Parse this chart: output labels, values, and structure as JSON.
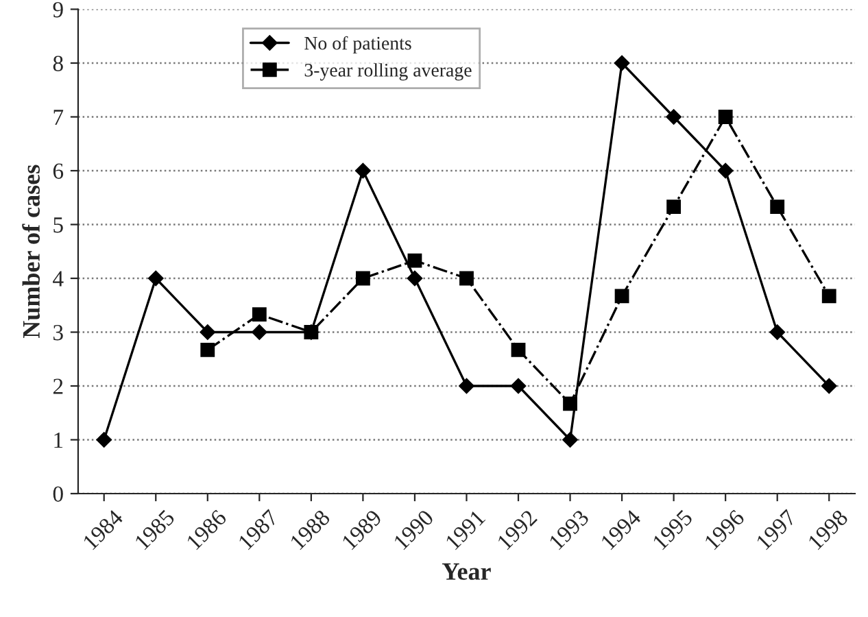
{
  "chart_data": {
    "type": "line",
    "xlabel": "Year",
    "ylabel": "Number of cases",
    "categories": [
      "1984",
      "1985",
      "1986",
      "1987",
      "1988",
      "1989",
      "1990",
      "1991",
      "1992",
      "1993",
      "1994",
      "1995",
      "1996",
      "1997",
      "1998"
    ],
    "series": [
      {
        "name": "No of patients",
        "color": "#000000",
        "marker": "diamond",
        "line_style": "solid",
        "values": [
          1,
          4,
          3,
          3,
          3,
          6,
          4,
          2,
          2,
          1,
          8,
          7,
          6,
          3,
          2
        ]
      },
      {
        "name": "3-year rolling average",
        "color": "#000000",
        "marker": "square",
        "line_style": "dashdot",
        "values": [
          null,
          null,
          2.67,
          3.33,
          3,
          4,
          4.33,
          4,
          2.67,
          1.67,
          3.67,
          5.33,
          7,
          5.33,
          3.67
        ]
      }
    ],
    "ylim": [
      0,
      9
    ],
    "yticks": [
      0,
      1,
      2,
      3,
      4,
      5,
      6,
      7,
      8,
      9
    ],
    "grid": "y",
    "legend": "top left"
  }
}
